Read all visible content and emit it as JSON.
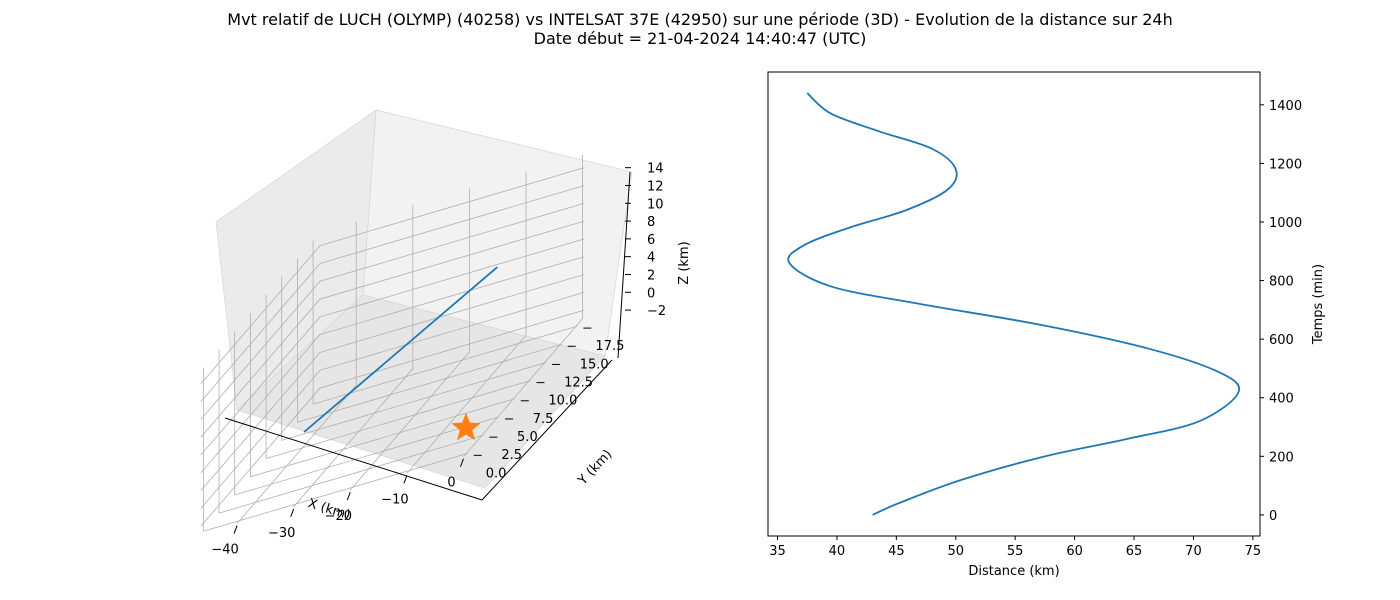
{
  "figure": {
    "title_line1": "Mvt relatif de LUCH (OLYMP) (40258) vs INTELSAT 37E (42950) sur une période (3D) - Evolution de la distance sur 24h",
    "title_line2": "Date début = 21-04-2024 14:40:47 (UTC)"
  },
  "chart_data": [
    {
      "type": "line",
      "projection": "3d",
      "xlabel": "X (km)",
      "ylabel": "Y (km)",
      "zlabel": "Z (km)",
      "x_ticks": [
        "−40",
        "−30",
        "−20",
        "−10",
        "0"
      ],
      "y_ticks": [
        "0.0",
        "2.5",
        "5.0",
        "7.5",
        "10.0",
        "12.5",
        "15.0",
        "17.5"
      ],
      "z_ticks": [
        "−2",
        "0",
        "2",
        "4",
        "6",
        "8",
        "10",
        "12",
        "14"
      ],
      "series": [
        {
          "points": [
            [
              -43,
              13,
              -3
            ],
            [
              0,
              5,
              14
            ]
          ],
          "color": "#1f77b4"
        }
      ],
      "marker": {
        "shape": "star",
        "point": [
          0,
          0,
          0
        ],
        "color": "#ff7f0e"
      },
      "grid": true
    },
    {
      "type": "line",
      "xlabel": "Distance (km)",
      "ylabel": "Temps (min)",
      "x_ticks": [
        "35",
        "40",
        "45",
        "50",
        "55",
        "60",
        "65",
        "70",
        "75"
      ],
      "y_ticks": [
        "0",
        "200",
        "400",
        "600",
        "800",
        "1000",
        "1200",
        "1400"
      ],
      "xlim": [
        34.2,
        75.6
      ],
      "ylim": [
        -72,
        1512
      ],
      "y_axis_position": "right",
      "color": "#1f77b4",
      "series": [
        {
          "x": [
            43.0,
            45.2,
            50.5,
            57.5,
            64.5,
            70.5,
            73.8,
            72.0,
            66.0,
            57.0,
            47.0,
            39.5,
            36.0,
            37.2,
            41.0,
            45.8,
            49.3,
            50.0,
            48.0,
            43.5,
            39.5,
            37.5
          ],
          "y": [
            0,
            40,
            120,
            200,
            260,
            320,
            420,
            490,
            570,
            650,
            720,
            780,
            860,
            920,
            980,
            1040,
            1110,
            1180,
            1250,
            1310,
            1370,
            1440
          ]
        }
      ]
    }
  ]
}
